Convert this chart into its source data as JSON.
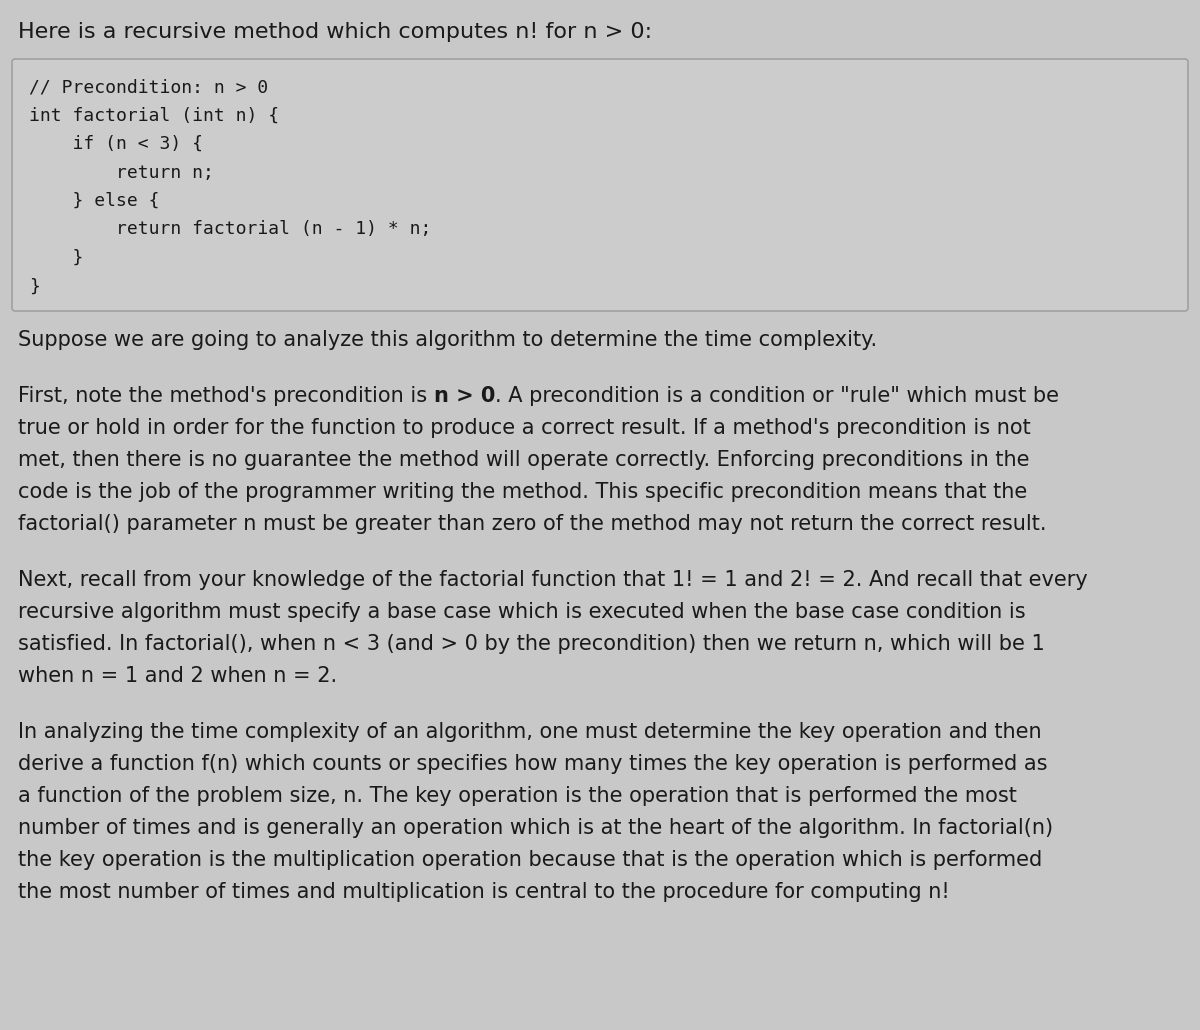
{
  "bg_color": "#c8c8c8",
  "title_text": "Here is a recursive method which computes n! for n > 0:",
  "title_fontsize": 16,
  "code_lines": [
    "// Precondition: n > 0",
    "int factorial (int n) {",
    "    if (n < 3) {",
    "        return n;",
    "    } else {",
    "        return factorial (n - 1) * n;",
    "    }",
    "}"
  ],
  "code_box_bg": "#cccccc",
  "code_box_border": "#999999",
  "code_fontsize": 13,
  "paragraphs": [
    {
      "lines": [
        {
          "text": "Suppose we are going to analyze this algorithm to determine the time complexity.",
          "bold": false,
          "italic": false
        }
      ]
    },
    {
      "lines": [
        {
          "text": "First, note the method's precondition is ",
          "bold": false,
          "italic": false
        },
        {
          "text": "n > 0",
          "bold": true,
          "italic": false
        },
        {
          "text": ". A precondition is a condition or \"rule\" which must be",
          "bold": false,
          "italic": false
        }
      ]
    },
    {
      "plain_lines": [
        "First, note the method's precondition is n > 0. A precondition is a condition or \"rule\" which must be",
        "true or hold in order for the function to produce a correct result. If a method's precondition is not",
        "met, then there is no guarantee the method will operate correctly. Enforcing preconditions in the",
        "code is the job of the programmer writing the method. This specific precondition means that the",
        "factorial() parameter n must be greater than zero of the method may not return the correct result."
      ]
    },
    {
      "plain_lines": [
        "Next, recall from your knowledge of the factorial function that 1! = 1 and 2! = 2. And recall that every",
        "recursive algorithm must specify a base case which is executed when the base case condition is",
        "satisfied. In factorial(), when n < 3 (and > 0 by the precondition) then we return n, which will be 1",
        "when n = 1 and 2 when n = 2."
      ]
    },
    {
      "plain_lines": [
        "In analyzing the time complexity of an algorithm, one must determine the key operation and then",
        "derive a function f(n) which counts or specifies how many times the key operation is performed as",
        "a function of the problem size, n. The key operation is the operation that is performed the most",
        "number of times and is generally an operation which is at the heart of the algorithm. In factorial(n)",
        "the key operation is the multiplication operation because that is the operation which is performed",
        "the most number of times and multiplication is central to the procedure for computing n!"
      ]
    }
  ],
  "text_fontsize": 15,
  "text_color": "#1a1a1a"
}
